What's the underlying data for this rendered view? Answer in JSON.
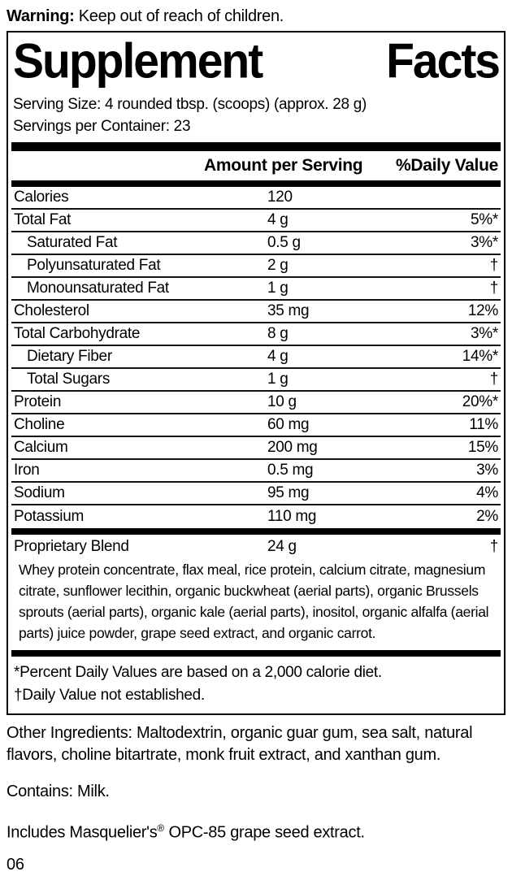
{
  "warning": {
    "label": "Warning:",
    "text": " Keep out of reach of children."
  },
  "panel": {
    "title_word1": "Supplement",
    "title_word2": "Facts",
    "serving_size": "Serving Size: 4 rounded tbsp. (scoops) (approx. 28 g)",
    "servings_per_container": "Servings per Container: 23",
    "columns": {
      "amount_header": "Amount per Serving",
      "dv_header": "%Daily Value"
    },
    "rows": [
      {
        "name": "Calories",
        "amount": "120",
        "dv": ""
      },
      {
        "name": "Total Fat",
        "amount": "4 g",
        "dv": "5%*"
      },
      {
        "name": "Saturated Fat",
        "amount": "0.5 g",
        "dv": "3%*"
      },
      {
        "name": "Polyunsaturated Fat",
        "amount": "2 g",
        "dv": "†"
      },
      {
        "name": "Monounsaturated Fat",
        "amount": "1 g",
        "dv": "†"
      },
      {
        "name": "Cholesterol",
        "amount": "35 mg",
        "dv": "12%"
      },
      {
        "name": "Total Carbohydrate",
        "amount": "8 g",
        "dv": "3%*"
      },
      {
        "name": "Dietary Fiber",
        "amount": "4 g",
        "dv": "14%*"
      },
      {
        "name": "Total Sugars",
        "amount": "1 g",
        "dv": "†"
      },
      {
        "name": "Protein",
        "amount": "10 g",
        "dv": "20%*"
      },
      {
        "name": "Choline",
        "amount": "60 mg",
        "dv": "11%"
      },
      {
        "name": "Calcium",
        "amount": "200 mg",
        "dv": "15%"
      },
      {
        "name": "Iron",
        "amount": "0.5 mg",
        "dv": "3%"
      },
      {
        "name": "Sodium",
        "amount": "95 mg",
        "dv": "4%"
      },
      {
        "name": "Potassium",
        "amount": "110 mg",
        "dv": "2%"
      }
    ],
    "blend": {
      "name": "Proprietary Blend",
      "amount": "24 g",
      "dv": "†",
      "description": "Whey protein concentrate, flax meal, rice protein, calcium citrate, magnesium citrate, sunflower lecithin, organic buckwheat (aerial parts), organic Brussels sprouts (aerial parts), organic kale (aerial parts), inositol, organic alfalfa (aerial parts) juice powder, grape seed extract, and organic carrot."
    },
    "footnotes": {
      "percent": "*Percent Daily Values are based on a 2,000 calorie diet.",
      "dagger": "†Daily Value not established."
    }
  },
  "other_ingredients": "Other Ingredients: Maltodextrin, organic guar gum, sea salt, natural flavors, choline bitartrate, monk fruit extract, and xanthan gum.",
  "contains": "Contains: Milk.",
  "includes": {
    "prefix": "Includes Masquelier's",
    "reg_mark": "®",
    "suffix": " OPC-85 grape seed extract."
  },
  "item_code": "06"
}
